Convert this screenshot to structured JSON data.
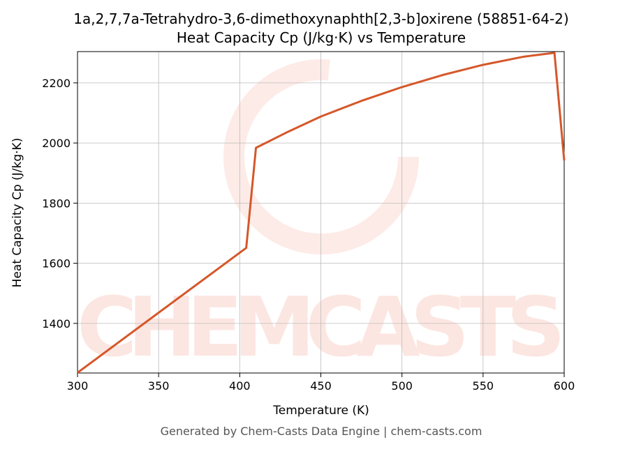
{
  "chart_data": {
    "type": "line",
    "title": "1a,2,7,7a-Tetrahydro-3,6-dimethoxynaphth[2,3-b]oxirene (58851-64-2)",
    "subtitle": "Heat Capacity Cp (J/kg·K) vs Temperature",
    "xlabel": "Temperature (K)",
    "ylabel": "Heat Capacity Cp (J/kg·K)",
    "footer": "Generated by Chem-Casts Data Engine | chem-casts.com",
    "watermark": "CHEMCASTS",
    "x": [
      300,
      404,
      410,
      430,
      450,
      475,
      500,
      525,
      550,
      575,
      594,
      600
    ],
    "series": [
      {
        "name": "Cp",
        "color": "#d5572a",
        "values": [
          1236,
          1651,
          1984,
          2038,
          2088,
          2140,
          2186,
          2226,
          2260,
          2287,
          2300,
          1942
        ]
      }
    ],
    "xlim": [
      300,
      600
    ],
    "ylim": [
      1235,
      2304
    ],
    "xticks": [
      300,
      350,
      400,
      450,
      500,
      550,
      600
    ],
    "yticks": [
      1400,
      1600,
      1800,
      2000,
      2200
    ],
    "grid": true
  }
}
